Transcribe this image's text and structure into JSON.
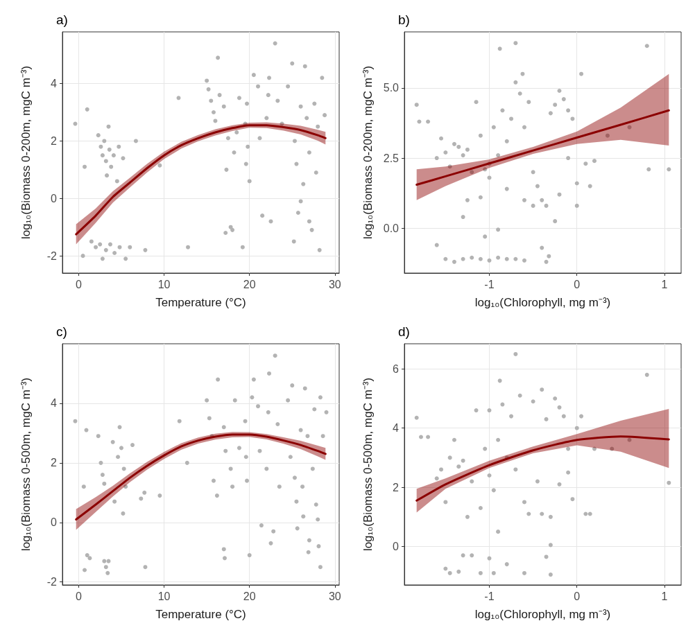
{
  "chart_data": [
    {
      "type": "scatter",
      "title": "a)",
      "xlabel": "Temperature (°C)",
      "ylabel": "log₁₀(Biomass 0-200m, mgC m⁻³)",
      "xlim": [
        -1.9,
        30.5
      ],
      "ylim": [
        -2.6,
        5.8
      ],
      "xticks": [
        0,
        10,
        20,
        30
      ],
      "yticks": [
        -2,
        0,
        2,
        4
      ],
      "grid": true,
      "series": [
        {
          "marker": "circle",
          "color": "#b3b3b3",
          "x": [
            -0.4,
            1,
            0.7,
            0.5,
            2.3,
            2.6,
            2.8,
            3,
            3.2,
            3.5,
            3.6,
            3.8,
            4.1,
            4.7,
            5.2,
            4.5,
            3.3,
            6.7,
            1.5,
            2,
            2.5,
            2.8,
            3.2,
            3.7,
            4.2,
            4.8,
            5.5,
            6,
            7.8,
            9.5,
            11.7,
            12.8,
            15,
            15.2,
            15.5,
            15.8,
            16,
            16.3,
            16.5,
            17,
            17.5,
            17.3,
            17.2,
            17.8,
            18,
            18.2,
            18.5,
            18.8,
            19.5,
            19.7,
            19.8,
            19.6,
            20,
            19.2,
            20.5,
            21,
            21.2,
            21.5,
            22,
            22.2,
            22.3,
            22.5,
            23,
            23.3,
            23.8,
            24.5,
            25,
            25.3,
            25.5,
            25.7,
            26,
            26.3,
            26.5,
            26.7,
            27,
            27,
            27.3,
            27.6,
            27.8,
            28,
            28.2,
            28.5,
            28.8,
            25.2,
            26
          ],
          "values": [
            2.6,
            3.1,
            1.1,
            -2,
            2.2,
            1.8,
            1.5,
            2,
            1.3,
            2.5,
            1.7,
            1.1,
            1.5,
            1.8,
            1.4,
            0.6,
            0.8,
            2,
            -1.5,
            -1.7,
            -1.6,
            -2.1,
            -1.8,
            -1.6,
            -1.9,
            -1.7,
            -2.1,
            -1.7,
            -1.8,
            1.15,
            3.5,
            -1.7,
            4.1,
            3.8,
            3.4,
            3,
            2.7,
            4.9,
            3.6,
            3.2,
            2.1,
            1,
            -1.2,
            -1,
            -1.1,
            1.6,
            2.3,
            3.5,
            2.6,
            3.3,
            1.8,
            1.2,
            0.6,
            -1.7,
            4.3,
            3.9,
            2.1,
            -0.6,
            2.8,
            3.6,
            4.2,
            -0.8,
            5.4,
            3.4,
            2.6,
            3.9,
            4.7,
            2,
            1.2,
            -0.5,
            3.2,
            0.5,
            4.6,
            2.8,
            1.6,
            -0.8,
            -1.1,
            3.3,
            0.9,
            2.5,
            -1.8,
            4.2,
            2.9,
            -1.5,
            -0.1
          ]
        },
        {
          "type": "line",
          "marker": "none",
          "color": "#8b0000",
          "x": [
            -0.3,
            2,
            4,
            6,
            8,
            10,
            12,
            14,
            16,
            18,
            20,
            22,
            24,
            26,
            28,
            28.9
          ],
          "values": [
            -1.25,
            -0.6,
            0.05,
            0.55,
            1.05,
            1.5,
            1.85,
            2.1,
            2.3,
            2.45,
            2.55,
            2.55,
            2.48,
            2.38,
            2.2,
            2.1
          ],
          "lower": [
            -1.6,
            -0.85,
            -0.15,
            0.38,
            0.9,
            1.37,
            1.73,
            1.99,
            2.19,
            2.35,
            2.46,
            2.45,
            2.36,
            2.23,
            2.01,
            1.88
          ],
          "upper": [
            -0.9,
            -0.35,
            0.25,
            0.72,
            1.2,
            1.63,
            1.97,
            2.21,
            2.41,
            2.55,
            2.64,
            2.65,
            2.6,
            2.53,
            2.39,
            2.32
          ]
        }
      ]
    },
    {
      "type": "scatter",
      "title": "b)",
      "xlabel": "log₁₀(Chlorophyll, mg m⁻³)",
      "ylabel": "log₁₀(Biomass 0-200m, mgC m⁻³)",
      "xlim": [
        -1.97,
        1.19
      ],
      "ylim": [
        -1.6,
        7.0
      ],
      "xticks": [
        -1,
        0,
        1
      ],
      "yticks": [
        {
          "value": 0,
          "label": "0.0"
        },
        2.5,
        {
          "value": 5,
          "label": "5.0"
        }
      ],
      "grid": true,
      "series": [
        {
          "marker": "circle",
          "color": "#b3b3b3",
          "x": [
            -1.83,
            -1.8,
            -1.7,
            -1.55,
            -1.6,
            -1.5,
            -1.45,
            -1.4,
            -1.35,
            -1.3,
            -1.25,
            -1.2,
            -1.15,
            -1.1,
            -1.05,
            -1,
            -1,
            -0.95,
            -0.9,
            -0.85,
            -0.8,
            -0.75,
            -0.7,
            -0.65,
            -0.62,
            -0.6,
            -0.55,
            -0.5,
            -0.45,
            -0.4,
            -0.35,
            -0.3,
            -0.25,
            -0.2,
            -0.15,
            -0.1,
            -0.05,
            0.05,
            0.1,
            0,
            0.15,
            0.2,
            0.35,
            0.6,
            0.8,
            0.82,
            1.05,
            -0.88,
            -0.7,
            -1.3,
            -1.05,
            -1.6,
            -1.5,
            -1.4,
            -1.3,
            -1.2,
            -1.1,
            -1,
            -0.9,
            -0.8,
            -0.7,
            -0.6,
            -0.4,
            -0.35,
            -0.32,
            -0.25,
            -1.25,
            -0.6,
            -0.8,
            -1.1,
            -0.5,
            -0.2,
            0,
            -0.1,
            -0.9
          ],
          "values": [
            4.4,
            3.8,
            3.8,
            3.2,
            2.5,
            2.7,
            2.2,
            3,
            2.9,
            2.6,
            2.8,
            2,
            4.5,
            3.3,
            2.1,
            2.3,
            1.8,
            3.6,
            2.6,
            4.2,
            3.1,
            3.9,
            5.2,
            4.8,
            5.5,
            3.6,
            4.5,
            2,
            1.5,
            1,
            0.8,
            4.1,
            4.4,
            4.9,
            4.6,
            4.2,
            3.9,
            5.5,
            2.3,
            1.6,
            1.5,
            2.4,
            3.3,
            3.6,
            6.5,
            2.1,
            2.1,
            6.4,
            6.6,
            0.4,
            -0.3,
            -0.6,
            -1.1,
            -1.2,
            -1.1,
            -1.05,
            -1.1,
            -1.15,
            -1.05,
            -1.1,
            -1.1,
            -1.15,
            -0.7,
            -1.2,
            -1,
            0.25,
            1,
            1,
            1.4,
            1.1,
            0.8,
            1.2,
            0.8,
            2.5,
            -0.05
          ]
        },
        {
          "type": "line",
          "marker": "none",
          "color": "#8b0000",
          "x": [
            -1.83,
            -1.5,
            -1,
            -0.5,
            0,
            0.5,
            1.05
          ],
          "values": [
            1.55,
            1.85,
            2.31,
            2.77,
            3.23,
            3.69,
            4.2
          ],
          "lower": [
            1,
            1.5,
            2.15,
            2.65,
            3,
            3.15,
            2.95
          ],
          "upper": [
            2.1,
            2.2,
            2.45,
            2.9,
            3.45,
            4.3,
            5.5
          ]
        }
      ]
    },
    {
      "type": "scatter",
      "title": "c)",
      "xlabel": "Temperature (°C)",
      "ylabel": "log₁₀(Biomass 0-500m, mgC m⁻³)",
      "xlim": [
        -1.9,
        30.5
      ],
      "ylim": [
        -2.1,
        6.0
      ],
      "xticks": [
        0,
        10,
        20,
        30
      ],
      "yticks": [
        -2,
        0,
        2,
        4
      ],
      "grid": true,
      "series": [
        {
          "marker": "circle",
          "color": "#b3b3b3",
          "x": [
            -0.4,
            0.6,
            0.9,
            1,
            0.7,
            1.3,
            2.3,
            2.6,
            2.8,
            3,
            3,
            3.2,
            3.5,
            3.4,
            4,
            4.2,
            4.6,
            4.8,
            5,
            5.3,
            5.2,
            5.5,
            6.3,
            7.3,
            7.7,
            7.8,
            9.5,
            11.8,
            12.7,
            15,
            15.3,
            15.6,
            15.8,
            16.2,
            16.3,
            17,
            17.2,
            17,
            17.1,
            17.8,
            18,
            18.3,
            18.8,
            19.5,
            19.6,
            19.7,
            20,
            20.3,
            20.5,
            21,
            21.2,
            21.4,
            22,
            22.2,
            22.3,
            22.5,
            22.8,
            23,
            23.3,
            23.5,
            24.5,
            24.8,
            25,
            25.3,
            25.5,
            25.6,
            26,
            26.2,
            26.5,
            26.8,
            26.9,
            27,
            27.4,
            27.6,
            27.8,
            28,
            28.1,
            28.3,
            28.6,
            28.3,
            29,
            26.3
          ],
          "values": [
            3.4,
            1.2,
            3.1,
            -1.1,
            -1.6,
            -1.2,
            2.9,
            2,
            1.6,
            1.3,
            -1.3,
            -1.5,
            -1.3,
            -1.7,
            2.7,
            0.7,
            2.2,
            3.2,
            2.5,
            1.8,
            0.3,
            1.2,
            2.6,
            0.8,
            1,
            -1.5,
            0.9,
            3.4,
            2,
            4.1,
            3.5,
            2.9,
            1.4,
            0.9,
            4.8,
            3.2,
            2.4,
            -0.9,
            -1.2,
            1.8,
            1.2,
            4.1,
            2.5,
            3.4,
            2.2,
            1.4,
            -1.1,
            4.2,
            4.8,
            3.9,
            2.4,
            -0.1,
            1.8,
            3.7,
            5,
            -0.7,
            -0.3,
            5.6,
            3.3,
            1.2,
            4.1,
            2.2,
            4.6,
            1.5,
            0.7,
            -0.2,
            3.1,
            1.2,
            4.5,
            2.9,
            -1,
            -0.6,
            1.8,
            3.8,
            0.6,
            0.1,
            -0.8,
            4.2,
            2.9,
            -1.5,
            3.7,
            0.2
          ]
        },
        {
          "type": "line",
          "marker": "none",
          "color": "#8b0000",
          "x": [
            -0.3,
            2,
            4,
            6,
            8,
            10,
            12,
            14,
            16,
            18,
            20,
            22,
            24,
            26,
            28,
            28.9
          ],
          "values": [
            0.1,
            0.6,
            1.05,
            1.5,
            1.9,
            2.25,
            2.55,
            2.75,
            2.88,
            2.95,
            2.95,
            2.88,
            2.75,
            2.6,
            2.4,
            2.3
          ],
          "lower": [
            -0.25,
            0.35,
            0.87,
            1.35,
            1.77,
            2.13,
            2.44,
            2.65,
            2.78,
            2.86,
            2.87,
            2.79,
            2.64,
            2.46,
            2.22,
            2.1
          ],
          "upper": [
            0.45,
            0.85,
            1.23,
            1.65,
            2.03,
            2.37,
            2.66,
            2.85,
            2.98,
            3.04,
            3.03,
            2.97,
            2.86,
            2.74,
            2.58,
            2.5
          ]
        }
      ]
    },
    {
      "type": "scatter",
      "title": "d)",
      "xlabel": "log₁₀(Chlorophyll, mg m⁻³)",
      "ylabel": "log₁₀(Biomass 0-500m, mgC m⁻³)",
      "xlim": [
        -1.97,
        1.19
      ],
      "ylim": [
        -1.3,
        6.85
      ],
      "xticks": [
        -1,
        0,
        1
      ],
      "yticks": [
        0,
        2,
        4,
        6
      ],
      "grid": true,
      "series": [
        {
          "marker": "circle",
          "color": "#b3b3b3",
          "x": [
            -1.83,
            -1.78,
            -1.7,
            -1.6,
            -1.55,
            -1.5,
            -1.45,
            -1.4,
            -1.35,
            -1.3,
            -1.25,
            -1.2,
            -1.15,
            -1.1,
            -1.05,
            -1,
            -1,
            -0.95,
            -0.9,
            -0.88,
            -0.85,
            -0.8,
            -0.75,
            -0.7,
            -0.7,
            -0.65,
            -0.6,
            -0.55,
            -0.5,
            -0.45,
            -0.4,
            -0.35,
            -0.3,
            -0.25,
            -0.2,
            -0.15,
            -0.1,
            -0.05,
            0,
            0.05,
            0.1,
            0.15,
            0.2,
            0.4,
            0.6,
            0.8,
            1.05,
            -1.3,
            -1.45,
            -1.5,
            -1.2,
            -1.1,
            -1,
            -0.95,
            -0.8,
            -0.6,
            -0.3,
            -0.3,
            -0.35,
            -0.4,
            -1.35,
            -0.9,
            -0.2,
            -0.1
          ],
          "values": [
            4.35,
            3.7,
            3.7,
            2.3,
            2.6,
            1.5,
            3,
            3.6,
            2.7,
            2.9,
            1,
            2.2,
            4.6,
            1.3,
            3.3,
            2.4,
            4.6,
            1.9,
            3.6,
            5.6,
            4.8,
            3,
            4.4,
            2.6,
            6.5,
            5.1,
            1.5,
            1.1,
            4.9,
            2.2,
            5.3,
            4.3,
            1,
            5,
            4.7,
            4.4,
            3.3,
            1.6,
            4,
            4.4,
            1.1,
            1.1,
            3.3,
            3.3,
            3.6,
            5.8,
            2.15,
            -0.3,
            -0.9,
            -0.75,
            -0.3,
            -0.9,
            -0.4,
            -0.9,
            -0.6,
            -0.9,
            -0.95,
            0.05,
            -0.35,
            1.1,
            -0.85,
            0.5,
            2.1,
            2.5
          ]
        },
        {
          "type": "line",
          "marker": "none",
          "color": "#8b0000",
          "x": [
            -1.83,
            -1.5,
            -1,
            -0.5,
            0,
            0.5,
            1.05
          ],
          "values": [
            1.55,
            2.1,
            2.75,
            3.25,
            3.6,
            3.72,
            3.62
          ],
          "lower": [
            1.15,
            1.95,
            2.65,
            3.15,
            3.42,
            3.2,
            2.65
          ],
          "upper": [
            1.95,
            2.3,
            2.9,
            3.38,
            3.8,
            4.25,
            4.65
          ]
        }
      ]
    }
  ]
}
